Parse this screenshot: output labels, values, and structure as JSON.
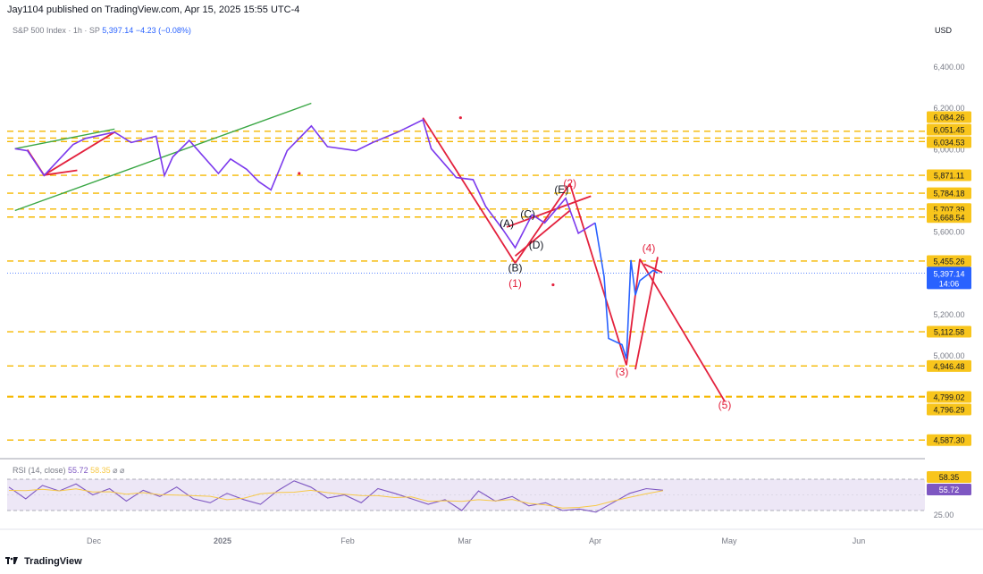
{
  "header": {
    "publish_line": "Jay1104 published on TradingView.com, Apr 15, 2025 15:55 UTC-4"
  },
  "legend": {
    "symbol": "S&P 500 Index · 1h · SP",
    "price": "5,397.14",
    "change": "−4.23 (−0.08%)"
  },
  "currency": "USD",
  "rsi_legend": {
    "label": "RSI (14, close)",
    "value": "55.72",
    "signal": "58.35",
    "symbols": "⌀ ⌀"
  },
  "footer": {
    "brand": "TradingView"
  },
  "colors": {
    "price_line": "#7c3aed",
    "price_line_recent": "#2962ff",
    "levels": "#f5b800",
    "wave": "#e3213d",
    "channel": "#3aa745",
    "rsi": "#7e57c2",
    "rsi_signal": "#f7c948",
    "rsi_band": "#ede7f6"
  },
  "chart_data": [
    {
      "type": "line",
      "title": "S&P 500 Index · 1h · SP",
      "x_axis_labels": [
        "Dec",
        "2025",
        "Feb",
        "Mar",
        "Apr",
        "May",
        "Jun"
      ],
      "y_axis_ticks": [
        "6,400.00",
        "6,200.00",
        "6,000.00",
        "5,800.00",
        "5,600.00",
        "5,400.00",
        "5,200.00",
        "5,000.00"
      ],
      "ylim": [
        4540,
        6520
      ],
      "series": [
        {
          "name": "S&P 500 Index",
          "x": [
            "2024-11-12",
            "2024-11-15",
            "2024-11-19",
            "2024-11-26",
            "2024-11-29",
            "2024-12-06",
            "2024-12-10",
            "2024-12-16",
            "2024-12-18",
            "2024-12-20",
            "2024-12-24",
            "2024-12-31",
            "2025-01-03",
            "2025-01-07",
            "2025-01-10",
            "2025-01-13",
            "2025-01-17",
            "2025-01-23",
            "2025-01-27",
            "2025-02-03",
            "2025-02-07",
            "2025-02-13",
            "2025-02-19",
            "2025-02-21",
            "2025-02-27",
            "2025-03-03",
            "2025-03-06",
            "2025-03-10",
            "2025-03-13",
            "2025-03-17",
            "2025-03-20",
            "2025-03-25",
            "2025-03-28",
            "2025-04-01",
            "2025-04-03",
            "2025-04-04",
            "2025-04-07",
            "2025-04-08",
            "2025-04-09",
            "2025-04-10",
            "2025-04-11",
            "2025-04-14",
            "2025-04-15"
          ],
          "values": [
            6000,
            5990,
            5870,
            6020,
            6050,
            6080,
            6030,
            6060,
            5870,
            5960,
            6040,
            5880,
            5950,
            5900,
            5840,
            5800,
            5990,
            6110,
            6010,
            5990,
            6030,
            6080,
            6140,
            6000,
            5860,
            5850,
            5720,
            5610,
            5520,
            5680,
            5640,
            5760,
            5590,
            5640,
            5380,
            5080,
            5050,
            4982,
            5460,
            5290,
            5360,
            5410,
            5397
          ]
        },
        {
          "name": "Horizontal levels",
          "values": [
            6084.26,
            6051.45,
            6034.53,
            5871.11,
            5784.18,
            5707.39,
            5668.54,
            5455.26,
            5112.58,
            4946.48,
            4799.02,
            4796.29,
            4587.3
          ]
        }
      ],
      "price_badges": [
        "6,084.26",
        "6,051.45",
        "6,034.53",
        "5,871.11",
        "5,784.18",
        "5,707.39",
        "5,668.54",
        "5,455.26",
        "5,112.58",
        "4,946.48",
        "4,799.02",
        "4,796.29",
        "4,587.30"
      ],
      "current_price_badge": {
        "price": "5,397.14",
        "countdown": "14:06"
      },
      "annotations": [
        {
          "text": "(A)"
        },
        {
          "text": "(B)"
        },
        {
          "text": "(C)"
        },
        {
          "text": "(D)"
        },
        {
          "text": "(E)"
        },
        {
          "text": "(1)"
        },
        {
          "text": "(2)"
        },
        {
          "text": "(3)"
        },
        {
          "text": "(4)"
        },
        {
          "text": "(5)"
        }
      ],
      "grid": false
    },
    {
      "type": "line",
      "title": "RSI (14, close)",
      "y_axis_ticks": [
        "25.00"
      ],
      "ylim": [
        20,
        80
      ],
      "rsi_badges": [
        "58.35",
        "55.72"
      ],
      "series": [
        {
          "name": "RSI",
          "values": [
            60,
            45,
            62,
            55,
            64,
            50,
            58,
            42,
            56,
            48,
            60,
            45,
            40,
            52,
            44,
            38,
            55,
            68,
            60,
            46,
            50,
            40,
            58,
            52,
            45,
            38,
            44,
            30,
            55,
            42,
            48,
            36,
            40,
            30,
            32,
            28,
            40,
            52,
            58,
            56
          ]
        },
        {
          "name": "Signal"
        }
      ]
    }
  ]
}
